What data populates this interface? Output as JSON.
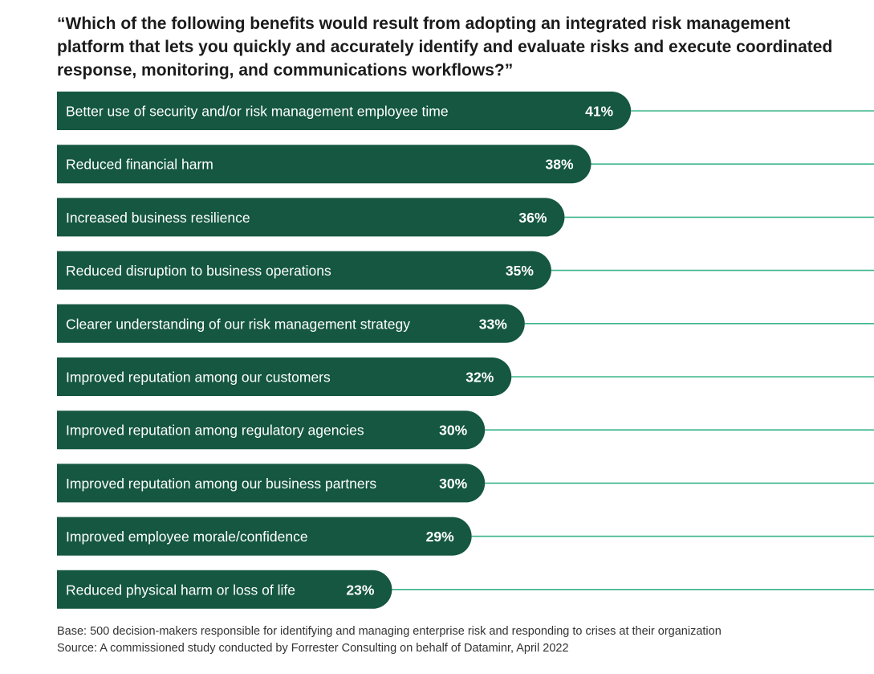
{
  "chart_data": {
    "type": "bar",
    "orientation": "horizontal",
    "title": "“Which of the following benefits would result from adopting an integrated risk management platform that lets you quickly and accurately identify and evaluate risks and execute coordinated response, monitoring, and communications workflows?”",
    "categories": [
      "Better use of security and/or risk management employee time",
      "Reduced financial harm",
      "Increased business resilience",
      "Reduced disruption to business operations",
      "Clearer understanding of our risk management strategy",
      "Improved reputation among our customers",
      "Improved reputation among regulatory agencies",
      "Improved reputation among our business partners",
      "Improved employee morale/confidence",
      "Reduced physical harm or loss of life"
    ],
    "values": [
      41,
      38,
      36,
      35,
      33,
      32,
      30,
      30,
      29,
      23
    ],
    "value_labels": [
      "41%",
      "38%",
      "36%",
      "35%",
      "33%",
      "32%",
      "30%",
      "30%",
      "29%",
      "23%"
    ],
    "unit": "%",
    "xlim": [
      0,
      100
    ],
    "grid": false,
    "legend": "none"
  },
  "colors": {
    "bar": "#155740",
    "connector_line": "#3cb58a",
    "bar_text": "#ffffff",
    "title": "#1b1b1b",
    "footnote": "#333333"
  },
  "footnotes": {
    "base": "Base: 500 decision-makers responsible for identifying and managing enterprise risk and responding to crises at their organization",
    "source": "Source: A commissioned study conducted by Forrester Consulting on behalf of Dataminr, April 2022"
  }
}
